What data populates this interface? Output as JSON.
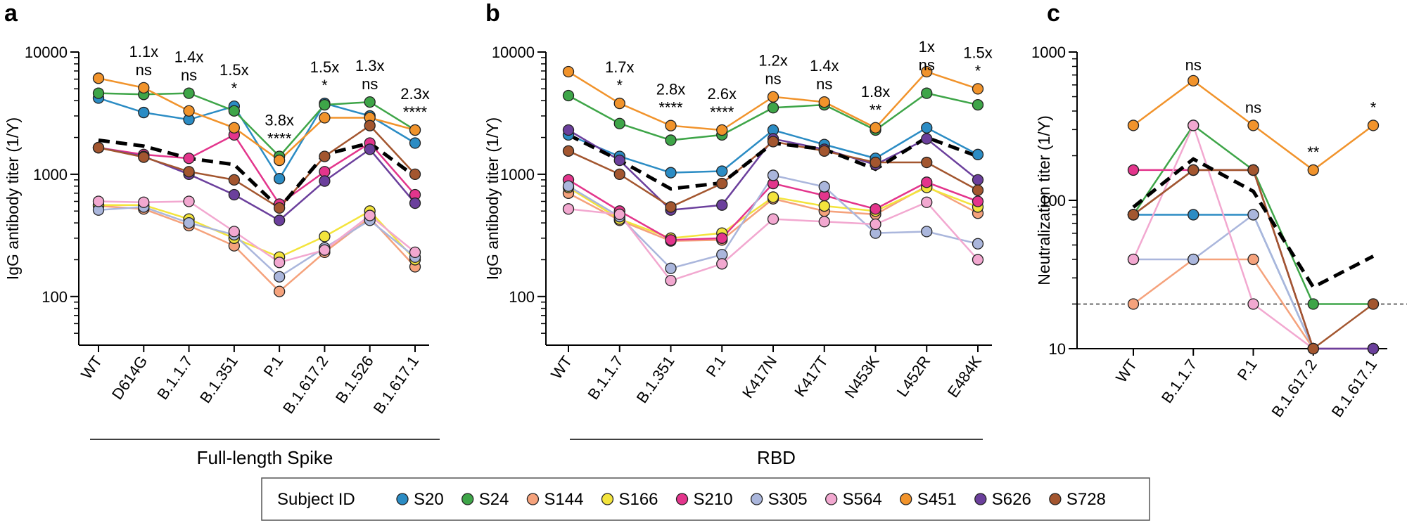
{
  "chart_data": [
    {
      "type": "line",
      "panel": "a",
      "y_label": "IgG antibody titer (1/Y)",
      "group_label": "Full-length Spike",
      "log_scale": true,
      "ylim": [
        40,
        10000
      ],
      "yticks": [
        100,
        1000,
        10000
      ],
      "categories": [
        "WT",
        "D614G",
        "B.1.1.7",
        "B.1.351",
        "P.1",
        "B.1.617.2",
        "B.1.526",
        "B.1.617.1"
      ],
      "fold_changes": [
        null,
        "1.1x",
        "1.4x",
        "1.5x",
        "3.8x",
        "1.5x",
        "1.3x",
        "2.3x"
      ],
      "significance": [
        null,
        "ns",
        "ns",
        "*",
        "****",
        "*",
        "ns",
        "****"
      ],
      "series": [
        {
          "name": "S20",
          "color": "#2b8cc4",
          "values": [
            4200,
            3200,
            2800,
            3600,
            920,
            3800,
            3000,
            1800
          ]
        },
        {
          "name": "S24",
          "color": "#3ea548",
          "values": [
            4600,
            4500,
            4600,
            3300,
            1400,
            3700,
            3900,
            2300
          ]
        },
        {
          "name": "S144",
          "color": "#f5a27c",
          "values": [
            550,
            520,
            380,
            260,
            110,
            230,
            440,
            175
          ]
        },
        {
          "name": "S166",
          "color": "#f3e43c",
          "values": [
            560,
            560,
            430,
            300,
            210,
            310,
            500,
            200
          ]
        },
        {
          "name": "S210",
          "color": "#e3358c",
          "values": [
            1650,
            1450,
            1350,
            2100,
            570,
            1050,
            1800,
            680
          ]
        },
        {
          "name": "S305",
          "color": "#aab6dc",
          "values": [
            510,
            540,
            400,
            320,
            145,
            250,
            420,
            210
          ]
        },
        {
          "name": "S564",
          "color": "#f2a8d0",
          "values": [
            600,
            590,
            600,
            340,
            190,
            240,
            460,
            230
          ]
        },
        {
          "name": "S451",
          "color": "#f1932b",
          "values": [
            6100,
            5100,
            3300,
            2400,
            1300,
            2900,
            2900,
            2300
          ]
        },
        {
          "name": "S626",
          "color": "#6b3f9c",
          "values": [
            1650,
            1400,
            1000,
            680,
            420,
            880,
            1600,
            580
          ]
        },
        {
          "name": "S728",
          "color": "#a3562f",
          "values": [
            1650,
            1380,
            1050,
            900,
            530,
            1400,
            2500,
            1000
          ]
        }
      ],
      "mean": {
        "color": "#000000",
        "values": [
          1900,
          1700,
          1350,
          1200,
          530,
          1450,
          1800,
          960
        ]
      }
    },
    {
      "type": "line",
      "panel": "b",
      "y_label": "IgG antibody titer (1/Y)",
      "group_label": "RBD",
      "log_scale": true,
      "ylim": [
        40,
        10000
      ],
      "yticks": [
        100,
        1000,
        10000
      ],
      "categories": [
        "WT",
        "B.1.1.7",
        "B.1.351",
        "P.1",
        "K417N",
        "K417T",
        "N453K",
        "L452R",
        "E484K"
      ],
      "fold_changes": [
        null,
        "1.7x",
        "2.8x",
        "2.6x",
        "1.2x",
        "1.4x",
        "1.8x",
        "1x",
        "1.5x"
      ],
      "significance": [
        null,
        "*",
        "****",
        "****",
        "ns",
        "ns",
        "**",
        "ns",
        "*"
      ],
      "series": [
        {
          "name": "S20",
          "color": "#2b8cc4",
          "values": [
            2100,
            1400,
            1030,
            1060,
            2300,
            1750,
            1350,
            2400,
            1450
          ]
        },
        {
          "name": "S24",
          "color": "#3ea548",
          "values": [
            4400,
            2600,
            1900,
            2100,
            3500,
            3700,
            2300,
            4600,
            3700
          ]
        },
        {
          "name": "S144",
          "color": "#f5a27c",
          "values": [
            700,
            420,
            285,
            290,
            630,
            500,
            470,
            800,
            480
          ]
        },
        {
          "name": "S166",
          "color": "#f3e43c",
          "values": [
            780,
            430,
            300,
            330,
            650,
            550,
            500,
            780,
            540
          ]
        },
        {
          "name": "S210",
          "color": "#e3358c",
          "values": [
            900,
            500,
            290,
            300,
            840,
            670,
            520,
            860,
            600
          ]
        },
        {
          "name": "S305",
          "color": "#aab6dc",
          "values": [
            800,
            450,
            170,
            220,
            980,
            790,
            330,
            340,
            270
          ]
        },
        {
          "name": "S564",
          "color": "#f2a8d0",
          "values": [
            520,
            470,
            135,
            185,
            430,
            410,
            390,
            590,
            200
          ]
        },
        {
          "name": "S451",
          "color": "#f1932b",
          "values": [
            6900,
            3800,
            2500,
            2300,
            4300,
            3900,
            2400,
            6900,
            5000
          ]
        },
        {
          "name": "S626",
          "color": "#6b3f9c",
          "values": [
            2300,
            1300,
            510,
            560,
            1950,
            1600,
            1200,
            1950,
            900
          ]
        },
        {
          "name": "S728",
          "color": "#a3562f",
          "values": [
            1550,
            1000,
            540,
            840,
            1850,
            1550,
            1250,
            1250,
            740
          ]
        }
      ],
      "mean": {
        "color": "#000000",
        "values": [
          2100,
          1300,
          760,
          850,
          1800,
          1600,
          1100,
          2000,
          1400
        ]
      }
    },
    {
      "type": "line",
      "panel": "c",
      "y_label": "Neutralization titer (1/Y)",
      "log_scale": true,
      "ylim": [
        10,
        1000
      ],
      "yticks": [
        10,
        100,
        1000
      ],
      "threshold": 20,
      "categories": [
        "WT",
        "B.1.1.7",
        "P.1",
        "B.1.617.2",
        "B.1.617.1"
      ],
      "significance": [
        null,
        "ns",
        "ns",
        "**",
        "*"
      ],
      "series": [
        {
          "name": "S20",
          "color": "#2b8cc4",
          "values": [
            80,
            80,
            80,
            10,
            10
          ]
        },
        {
          "name": "S24",
          "color": "#3ea548",
          "values": [
            80,
            320,
            160,
            20,
            20
          ]
        },
        {
          "name": "S144",
          "color": "#f5a27c",
          "values": [
            20,
            40,
            40,
            10,
            10
          ]
        },
        {
          "name": "S166",
          "color": "#f3e43c",
          "values": [
            80,
            160,
            160,
            10,
            10
          ]
        },
        {
          "name": "S210",
          "color": "#e3358c",
          "values": [
            160,
            160,
            160,
            10,
            10
          ]
        },
        {
          "name": "S305",
          "color": "#aab6dc",
          "values": [
            40,
            40,
            80,
            10,
            10
          ]
        },
        {
          "name": "S564",
          "color": "#f2a8d0",
          "values": [
            40,
            320,
            20,
            10,
            10
          ]
        },
        {
          "name": "S626",
          "color": "#6b3f9c",
          "values": [
            80,
            160,
            160,
            10,
            10
          ]
        },
        {
          "name": "S728",
          "color": "#a3562f",
          "values": [
            80,
            160,
            160,
            10,
            20
          ]
        },
        {
          "name": "S451",
          "color": "#f1932b",
          "values": [
            320,
            640,
            320,
            160,
            320
          ]
        }
      ],
      "mean": {
        "color": "#000000",
        "values": [
          90,
          190,
          115,
          26,
          42
        ]
      }
    }
  ],
  "legend": {
    "title": "Subject ID"
  }
}
